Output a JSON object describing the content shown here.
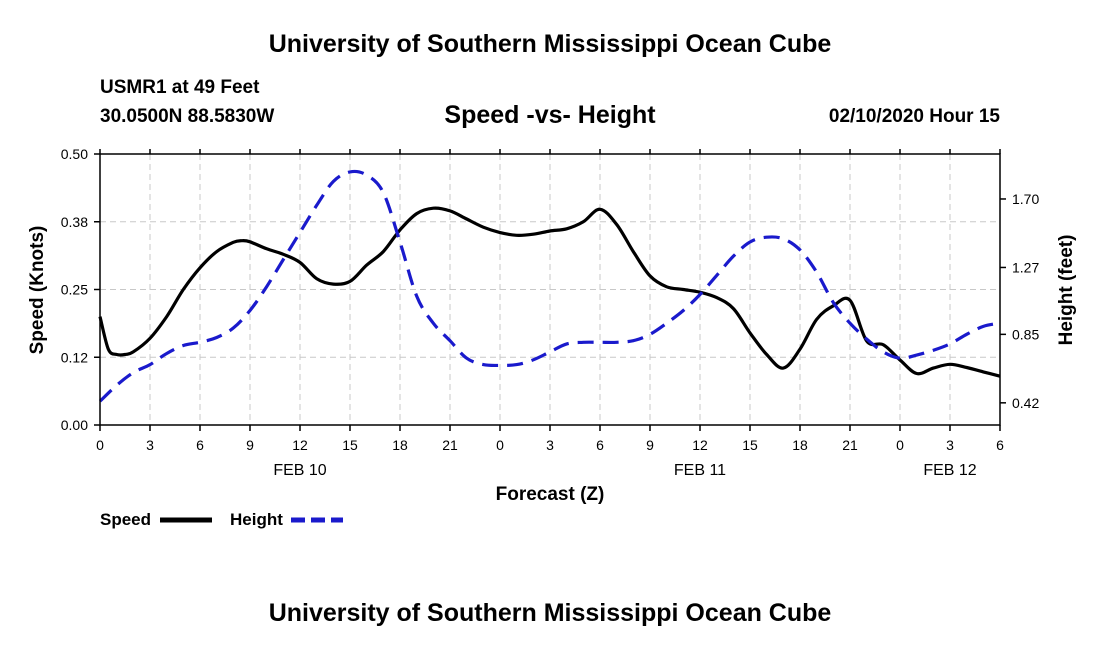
{
  "header": {
    "title": "University of Southern Mississippi Ocean Cube",
    "station": "USMR1 at 49 Feet",
    "location": "30.0500N 88.5830W",
    "subtitle": "Speed -vs- Height",
    "datetime": "02/10/2020 Hour 15"
  },
  "footer": {
    "title": "University of Southern Mississippi Ocean Cube"
  },
  "colors": {
    "speed": "#000000",
    "height": "#1a1acc",
    "grid": "#c8c8c8"
  },
  "chart_data": {
    "type": "line",
    "title": "Speed -vs- Height",
    "xlabel": "Forecast (Z)",
    "ylabel": "Speed (Knots)",
    "y2label": "Height (feet)",
    "xlim": [
      0,
      54
    ],
    "ylim": [
      0,
      0.5
    ],
    "y2lim": [
      0.2808,
      1.9824
    ],
    "x_tick_values": [
      0,
      3,
      6,
      9,
      12,
      15,
      18,
      21,
      24,
      27,
      30,
      33,
      36,
      39,
      42,
      45,
      48,
      51,
      54
    ],
    "x_tick_labels": [
      "0",
      "3",
      "6",
      "9",
      "12",
      "15",
      "18",
      "21",
      "0",
      "3",
      "6",
      "9",
      "12",
      "15",
      "18",
      "21",
      "0",
      "3",
      "6"
    ],
    "date_labels": [
      {
        "x": 12,
        "label": "FEB 10"
      },
      {
        "x": 36,
        "label": "FEB 11"
      },
      {
        "x": 51,
        "label": "FEB 12"
      }
    ],
    "y_tick_labels": [
      "0.00",
      "0.12",
      "0.25",
      "0.38",
      "0.50"
    ],
    "y_tick_values": [
      0,
      0.125,
      0.25,
      0.375,
      0.5
    ],
    "y2_tick_labels": [
      "0.42",
      "0.85",
      "1.27",
      "1.70"
    ],
    "y2_tick_values": [
      0.42,
      0.85,
      1.27,
      1.7
    ],
    "grid": true,
    "legend": [
      {
        "label": "Speed",
        "series": "Speed"
      },
      {
        "label": "Height",
        "series": "Height"
      }
    ],
    "series": [
      {
        "name": "Speed",
        "axis": "left",
        "style": "solid",
        "x": [
          0,
          0.5,
          1,
          1.5,
          2,
          3,
          4,
          5,
          6,
          7,
          8,
          8.5,
          9,
          10,
          11,
          12,
          13,
          14,
          15,
          16,
          17,
          18,
          19,
          20,
          21,
          22,
          23,
          24,
          25,
          26,
          27,
          28,
          29,
          30,
          31,
          32,
          33,
          34,
          35,
          36,
          37,
          38,
          39,
          40,
          41,
          42,
          43,
          44,
          45,
          46,
          47,
          48,
          49,
          50,
          51,
          52,
          53,
          54
        ],
        "y": [
          0.2,
          0.14,
          0.13,
          0.13,
          0.135,
          0.16,
          0.2,
          0.25,
          0.29,
          0.32,
          0.337,
          0.34,
          0.338,
          0.325,
          0.315,
          0.3,
          0.27,
          0.26,
          0.265,
          0.295,
          0.32,
          0.36,
          0.39,
          0.4,
          0.395,
          0.38,
          0.365,
          0.355,
          0.35,
          0.352,
          0.358,
          0.362,
          0.375,
          0.398,
          0.37,
          0.32,
          0.275,
          0.255,
          0.25,
          0.245,
          0.235,
          0.215,
          0.17,
          0.13,
          0.105,
          0.14,
          0.195,
          0.22,
          0.23,
          0.155,
          0.148,
          0.12,
          0.095,
          0.105,
          0.112,
          0.106,
          0.098,
          0.09
        ]
      },
      {
        "name": "Height",
        "axis": "right",
        "style": "dashed",
        "x": [
          0,
          1,
          2,
          3,
          4,
          5,
          6,
          7,
          8,
          9,
          10,
          11,
          12,
          13,
          14,
          15,
          16,
          17,
          18,
          19,
          20,
          21,
          22,
          23,
          24,
          25,
          26,
          27,
          28,
          29,
          30,
          31,
          32,
          33,
          34,
          35,
          36,
          37,
          38,
          39,
          40,
          41,
          42,
          43,
          44,
          45,
          46,
          47,
          48,
          49,
          50,
          51,
          52,
          53,
          54
        ],
        "y": [
          0.43,
          0.53,
          0.61,
          0.66,
          0.73,
          0.78,
          0.8,
          0.83,
          0.89,
          1.0,
          1.15,
          1.32,
          1.49,
          1.66,
          1.81,
          1.87,
          1.85,
          1.74,
          1.43,
          1.09,
          0.92,
          0.81,
          0.7,
          0.66,
          0.655,
          0.66,
          0.69,
          0.74,
          0.79,
          0.8,
          0.8,
          0.8,
          0.81,
          0.85,
          0.92,
          1.0,
          1.1,
          1.22,
          1.34,
          1.43,
          1.46,
          1.45,
          1.38,
          1.24,
          1.05,
          0.92,
          0.82,
          0.74,
          0.7,
          0.72,
          0.75,
          0.79,
          0.85,
          0.9,
          0.92
        ]
      }
    ]
  }
}
